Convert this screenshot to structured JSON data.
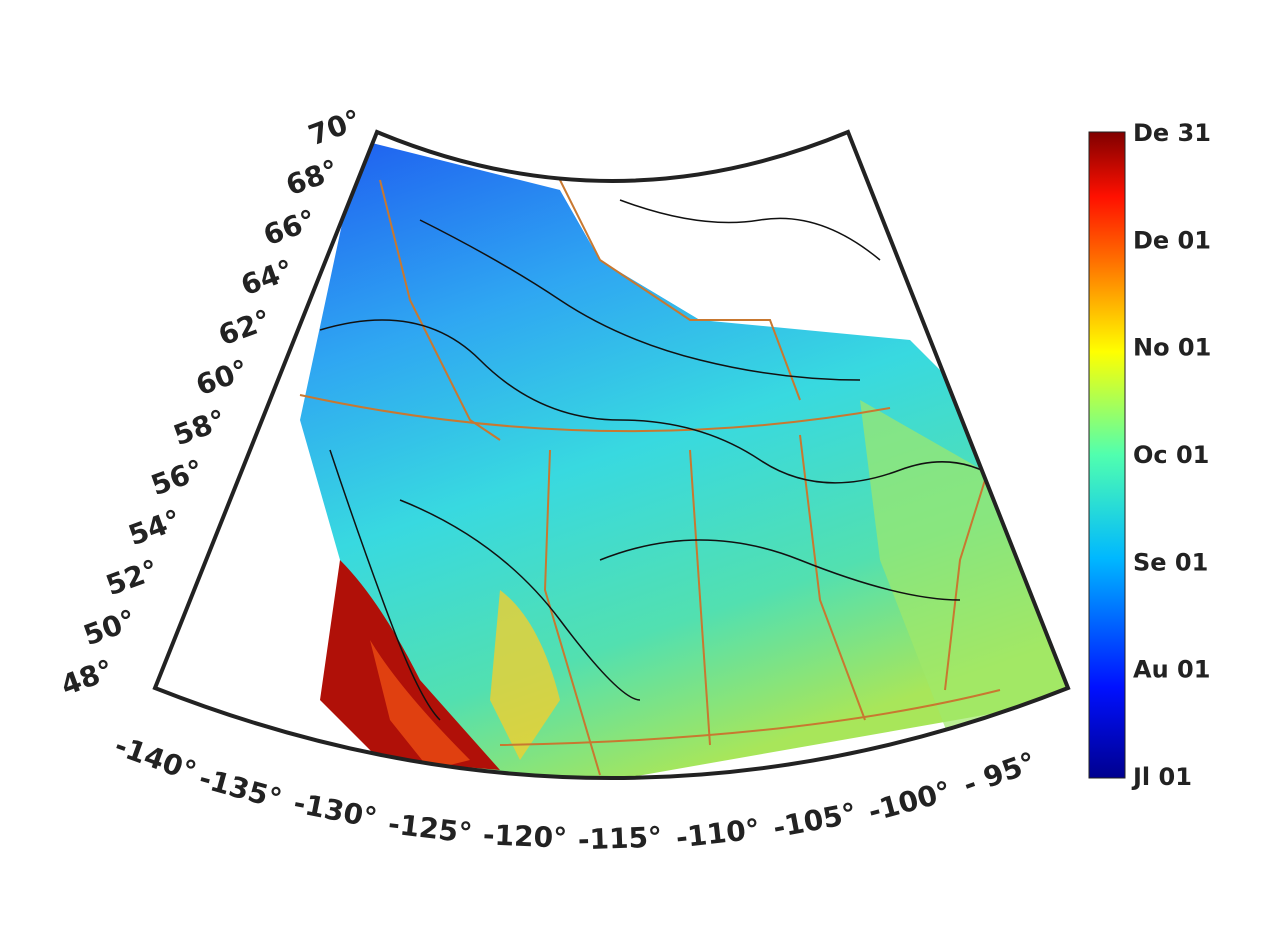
{
  "map": {
    "lat_labels": [
      "70°",
      "68°",
      "66°",
      "64°",
      "62°",
      "60°",
      "58°",
      "56°",
      "54°",
      "52°",
      "50°",
      "48°"
    ],
    "lon_labels": [
      "-140°",
      "-135°",
      "-130°",
      "-125°",
      "-120°",
      "-115°",
      "-110°",
      "-105°",
      "-100°",
      "- 95°"
    ],
    "colorbar": {
      "labels": [
        "De 31",
        "De 01",
        "No 01",
        "Oc 01",
        "Se 01",
        "Au 01",
        "Jl 01"
      ]
    }
  }
}
